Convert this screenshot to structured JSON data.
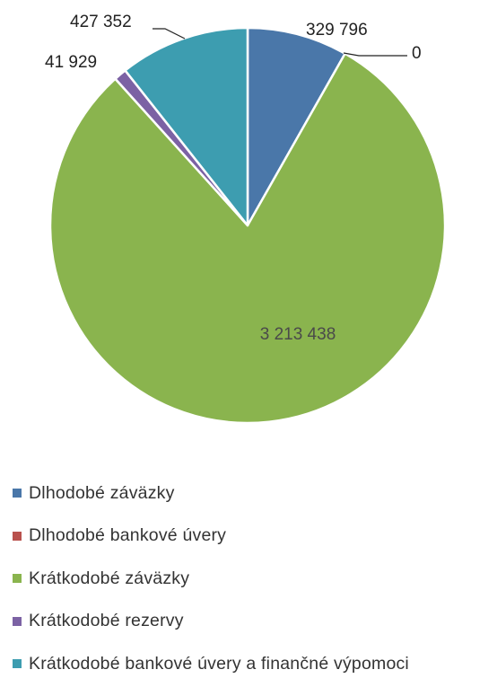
{
  "chart_data": {
    "type": "pie",
    "title": "",
    "legend_position": "bottom",
    "categories": [
      "Dlhodobé záväzky",
      "Dlhodobé bankové úvery",
      "Krátkodobé záväzky",
      "Krátkodobé rezervy",
      "Krátkodobé bankové úvery a finančné výpomoci"
    ],
    "values": [
      329796,
      0,
      3213438,
      41929,
      427352
    ],
    "value_labels": [
      "329 796",
      "0",
      "3 213 438",
      "41 929",
      "427 352"
    ],
    "colors": [
      "#4a77a9",
      "#b9514d",
      "#8ab44e",
      "#7c62a4",
      "#3d9db0"
    ],
    "start_angle_deg": 0,
    "direction": "clockwise"
  }
}
